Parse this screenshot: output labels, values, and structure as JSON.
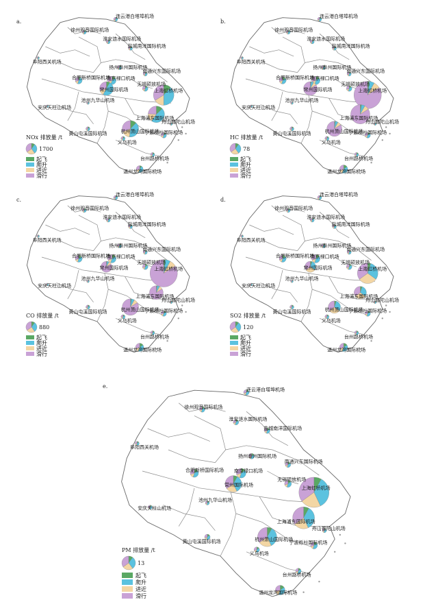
{
  "colors": {
    "takeoff": "#5aa864",
    "climb": "#5bc2df",
    "approach": "#f3d6a4",
    "taxi": "#c9a2d6"
  },
  "phases": [
    {
      "key": "takeoff",
      "label": "起飞"
    },
    {
      "key": "climb",
      "label": "爬升"
    },
    {
      "key": "approach",
      "label": "进近"
    },
    {
      "key": "taxi",
      "label": "滑行"
    }
  ],
  "airports": [
    {
      "id": "lyg",
      "name": "连云港白塔埠机场"
    },
    {
      "id": "xz",
      "name": "徐州观音国际机场"
    },
    {
      "id": "ha",
      "name": "淮安涟水国际机场"
    },
    {
      "id": "yc",
      "name": "盐城南洋国际机场"
    },
    {
      "id": "fy",
      "name": "阜阳西关机场"
    },
    {
      "id": "yz",
      "name": "扬州泰州国际机场"
    },
    {
      "id": "nt",
      "name": "南通兴东国际机场"
    },
    {
      "id": "hf",
      "name": "合肥新桥国际机场"
    },
    {
      "id": "nj",
      "name": "南京禄口机场"
    },
    {
      "id": "wx",
      "name": "无锡硕放机场"
    },
    {
      "id": "cz",
      "name": "常州国际机场"
    },
    {
      "id": "hq",
      "name": "上海虹桥机场"
    },
    {
      "id": "aq",
      "name": "安庆天柱山机场"
    },
    {
      "id": "ch",
      "name": "池州九华山机场"
    },
    {
      "id": "pd",
      "name": "上海浦东国际机场"
    },
    {
      "id": "zs",
      "name": "舟山普陀山机场"
    },
    {
      "id": "hz",
      "name": "杭州萧山国际机场"
    },
    {
      "id": "hs",
      "name": "黄山屯溪国际机场"
    },
    {
      "id": "yw",
      "name": "义乌机场"
    },
    {
      "id": "nb",
      "name": "宁波栎社国际机场"
    },
    {
      "id": "tz",
      "name": "台州路桥机场"
    },
    {
      "id": "wz",
      "name": "温州龙湾国际机场"
    }
  ],
  "panels": [
    {
      "id": "a",
      "letter": "a.",
      "legend_title": "NOx 排放量 /t",
      "legend_value": "1700"
    },
    {
      "id": "b",
      "letter": "b.",
      "legend_title": "HC 排放量 /t",
      "legend_value": "78"
    },
    {
      "id": "c",
      "letter": "c.",
      "legend_title": "CO 排放量 /t",
      "legend_value": "880"
    },
    {
      "id": "d",
      "letter": "d.",
      "legend_title": "SO2 排放量 /t",
      "legend_value": "120"
    },
    {
      "id": "e",
      "letter": "e.",
      "legend_title": "PM 排放量 /t",
      "legend_value": "13"
    }
  ],
  "chart_data": {
    "type": "map",
    "title": "",
    "note": "Proportional pie symbols of aircraft emissions by flight phase per airport",
    "pies": {
      "a": {
        "hq": [
          0.12,
          0.38,
          0.16,
          0.34
        ],
        "pd": [
          0.13,
          0.47,
          0.16,
          0.24
        ],
        "cz": [
          0.08,
          0.5,
          0.12,
          0.3
        ],
        "hz": [
          0.12,
          0.4,
          0.17,
          0.31
        ],
        "hf": [
          0.1,
          0.45,
          0.15,
          0.3
        ],
        "wz": [
          0.1,
          0.45,
          0.15,
          0.3
        ]
      },
      "b": {
        "hq": [
          0.02,
          0.06,
          0.08,
          0.84
        ],
        "pd": [
          0.02,
          0.06,
          0.08,
          0.84
        ],
        "cz": [
          0.02,
          0.06,
          0.08,
          0.84
        ],
        "hz": [
          0.02,
          0.06,
          0.08,
          0.84
        ]
      },
      "c": {
        "hq": [
          0.02,
          0.06,
          0.08,
          0.84
        ],
        "pd": [
          0.02,
          0.06,
          0.08,
          0.84
        ],
        "cz": [
          0.02,
          0.06,
          0.08,
          0.84
        ],
        "hz": [
          0.02,
          0.06,
          0.08,
          0.84
        ]
      },
      "d": {
        "hq": [
          0.05,
          0.3,
          0.3,
          0.35
        ],
        "pd": [
          0.05,
          0.3,
          0.3,
          0.35
        ],
        "cz": [
          0.05,
          0.3,
          0.3,
          0.35
        ],
        "hz": [
          0.05,
          0.3,
          0.3,
          0.35
        ]
      },
      "e": {
        "hq": [
          0.08,
          0.35,
          0.22,
          0.35
        ],
        "pd": [
          0.08,
          0.35,
          0.22,
          0.35
        ],
        "cz": [
          0.08,
          0.35,
          0.22,
          0.35
        ],
        "hz": [
          0.08,
          0.35,
          0.22,
          0.35
        ]
      }
    }
  }
}
